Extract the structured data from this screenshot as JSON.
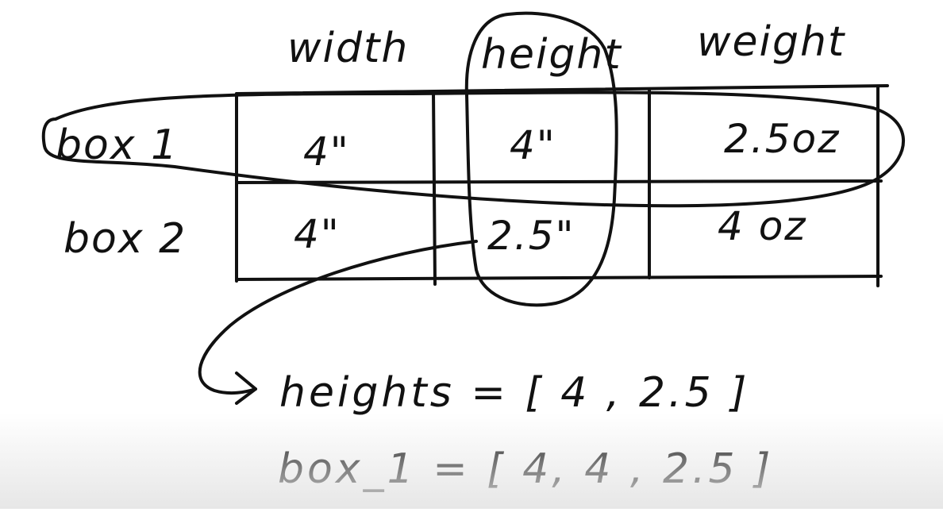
{
  "table": {
    "columns": [
      "width",
      "height",
      "weight"
    ],
    "rows": [
      {
        "label": "box 1",
        "cells": [
          "4\"",
          "4\"",
          "2.5oz"
        ]
      },
      {
        "label": "box 2",
        "cells": [
          "4\"",
          "2.5\"",
          "4 oz"
        ]
      }
    ]
  },
  "formulas": {
    "line1": "heights = [ 4 , 2.5 ]",
    "line2": "box_1 = [ 4, 4 , 2.5 ]"
  },
  "ink_color": "#111111"
}
